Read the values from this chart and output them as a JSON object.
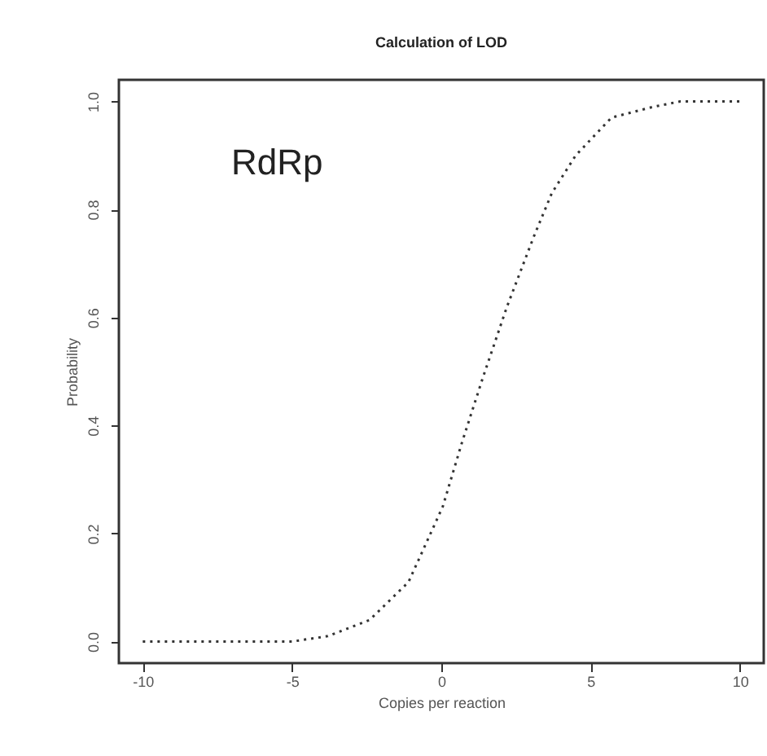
{
  "chart_data": {
    "type": "line",
    "title": "Calculation of LOD",
    "xlabel": "Copies per reaction",
    "ylabel": "Probability",
    "annotations": [
      "RdRp"
    ],
    "x": [
      -10,
      -9,
      -8,
      -7,
      -6,
      -5,
      -3.8,
      -2.4,
      -1.1,
      0.05,
      0.7,
      1.4,
      2.2,
      3.1,
      3.7,
      4.5,
      5.7,
      7.1,
      8,
      9,
      10
    ],
    "series": [
      {
        "color": "#333333",
        "values": [
          0,
          0,
          0,
          0,
          0,
          0,
          0.01,
          0.04,
          0.11,
          0.25,
          0.37,
          0.49,
          0.62,
          0.75,
          0.83,
          0.9,
          0.97,
          0.99,
          1.0,
          1.0,
          1.0
        ]
      }
    ],
    "xlim": [
      -10.8,
      10.8
    ],
    "ylim": [
      -0.04,
      1.04
    ],
    "xticks": [
      -10,
      -5,
      0,
      5,
      10
    ],
    "yticks": [
      {
        "value": 0,
        "label": "0.0"
      },
      {
        "value": 0.2,
        "label": "0.2"
      },
      {
        "value": 0.4,
        "label": "0.4"
      },
      {
        "value": 0.6,
        "label": "0.6"
      },
      {
        "value": 0.8,
        "label": "0.8"
      },
      {
        "value": 1,
        "label": "1.0"
      }
    ],
    "grid": false,
    "marker": "none",
    "line_style": "dotted"
  }
}
